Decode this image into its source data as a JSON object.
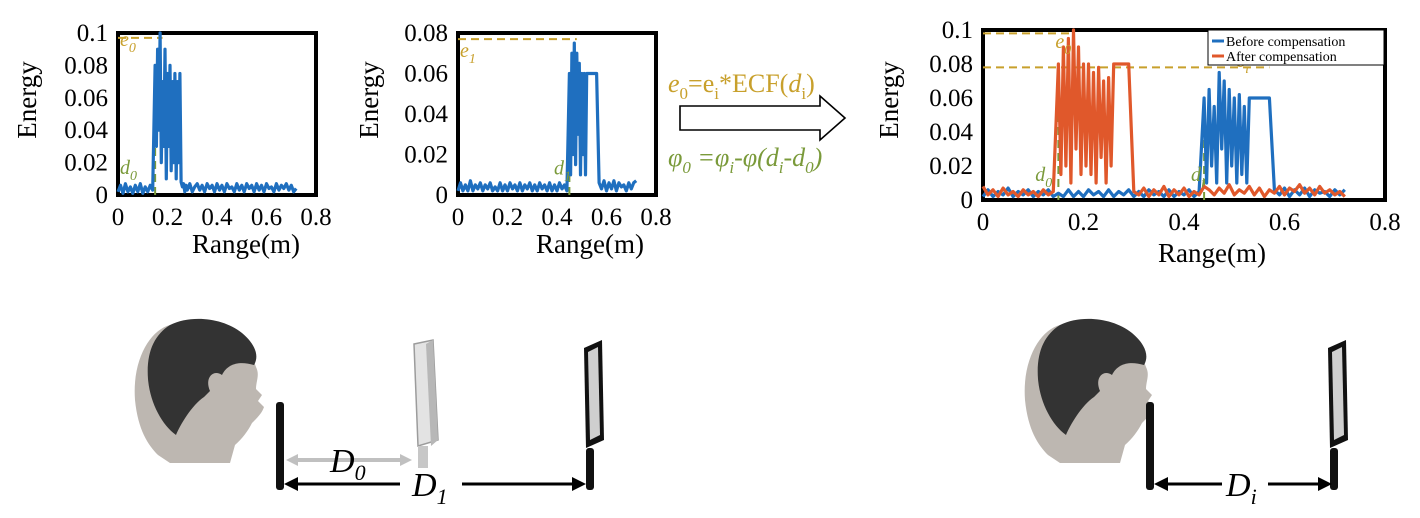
{
  "colors": {
    "before": "#1f6fbf",
    "after": "#e0582b",
    "gold": "#c8a02c",
    "green": "#7a9a3a",
    "axis": "#000000",
    "skin": "#bdb7b1",
    "hair": "#333333"
  },
  "formula": {
    "energy": [
      "e",
      "0",
      "=e",
      "i",
      "*ECF(",
      "d",
      "i",
      ")"
    ],
    "phase": [
      "φ",
      "0",
      " =φ",
      "i",
      "-φ(",
      "d",
      "i",
      "-",
      "d",
      "0",
      ")"
    ]
  },
  "distances": {
    "d0_base": "D",
    "d0_sub": "0",
    "d1_base": "D",
    "d1_sub": "1",
    "di_base": "D",
    "di_sub": "i"
  },
  "chart_data": [
    {
      "type": "line",
      "title": "",
      "xlabel": "Range(m)",
      "ylabel": "Energy",
      "xlim": [
        0,
        0.8
      ],
      "ylim": [
        0,
        0.1
      ],
      "xticks": [
        "0",
        "0.2",
        "0.4",
        "0.6",
        "0.8"
      ],
      "yticks": [
        "0",
        "0.02",
        "0.04",
        "0.06",
        "0.08",
        "0.1"
      ],
      "annotations": [
        {
          "text": "e",
          "sub": "0",
          "color": "gold",
          "x": 0.0,
          "y": 0.097
        },
        {
          "text": "d",
          "sub": "0",
          "color": "green",
          "x": 0.0,
          "y": 0.018
        }
      ],
      "guides": [
        {
          "kind": "h",
          "y": 0.097,
          "x0": 0.0,
          "x1": 0.18,
          "color": "gold"
        },
        {
          "kind": "v",
          "x": 0.15,
          "y0": 0.0,
          "y1": 0.08,
          "color": "green"
        }
      ],
      "series": [
        {
          "color": "before",
          "x": [
            0.0,
            0.01,
            0.02,
            0.03,
            0.04,
            0.05,
            0.06,
            0.07,
            0.08,
            0.09,
            0.1,
            0.11,
            0.12,
            0.13,
            0.14,
            0.15,
            0.155,
            0.16,
            0.165,
            0.17,
            0.175,
            0.18,
            0.185,
            0.19,
            0.195,
            0.2,
            0.205,
            0.21,
            0.215,
            0.22,
            0.225,
            0.23,
            0.235,
            0.24,
            0.245,
            0.25,
            0.255,
            0.26,
            0.265,
            0.27,
            0.275,
            0.28,
            0.29,
            0.3,
            0.31,
            0.32,
            0.33,
            0.34,
            0.35,
            0.36,
            0.37,
            0.38,
            0.39,
            0.4,
            0.41,
            0.42,
            0.43,
            0.44,
            0.45,
            0.46,
            0.47,
            0.48,
            0.49,
            0.5,
            0.51,
            0.52,
            0.53,
            0.54,
            0.55,
            0.56,
            0.57,
            0.58,
            0.59,
            0.6,
            0.61,
            0.62,
            0.63,
            0.64,
            0.65,
            0.66,
            0.67,
            0.68,
            0.69,
            0.7,
            0.71,
            0.72
          ],
          "y": [
            0.002,
            0.006,
            0.001,
            0.007,
            0.002,
            0.005,
            0.001,
            0.006,
            0.002,
            0.007,
            0.001,
            0.005,
            0.002,
            0.006,
            0.003,
            0.08,
            0.03,
            0.09,
            0.04,
            0.1,
            0.02,
            0.07,
            0.03,
            0.09,
            0.01,
            0.075,
            0.03,
            0.08,
            0.015,
            0.07,
            0.02,
            0.075,
            0.01,
            0.07,
            0.02,
            0.075,
            0.008,
            0.005,
            0.007,
            0.002,
            0.006,
            0.003,
            0.007,
            0.002,
            0.005,
            0.007,
            0.003,
            0.006,
            0.002,
            0.007,
            0.004,
            0.006,
            0.002,
            0.007,
            0.003,
            0.006,
            0.002,
            0.007,
            0.004,
            0.005,
            0.002,
            0.007,
            0.003,
            0.006,
            0.002,
            0.007,
            0.004,
            0.006,
            0.002,
            0.007,
            0.003,
            0.006,
            0.002,
            0.007,
            0.004,
            0.005,
            0.002,
            0.007,
            0.003,
            0.006,
            0.004,
            0.007,
            0.003,
            0.006,
            0.002,
            0.004
          ]
        }
      ]
    },
    {
      "type": "line",
      "title": "",
      "xlabel": "Range(m)",
      "ylabel": "Energy",
      "xlim": [
        0,
        0.8
      ],
      "ylim": [
        0,
        0.08
      ],
      "xticks": [
        "0",
        "0.2",
        "0.4",
        "0.6",
        "0.8"
      ],
      "yticks": [
        "0",
        "0.02",
        "0.04",
        "0.06",
        "0.08"
      ],
      "annotations": [
        {
          "text": "e",
          "sub": "1",
          "color": "gold",
          "x": 0.0,
          "y": 0.072
        },
        {
          "text": "d",
          "sub": "1",
          "color": "green",
          "x": 0.38,
          "y": 0.014
        }
      ],
      "guides": [
        {
          "kind": "h",
          "y": 0.077,
          "x0": 0.0,
          "x1": 0.48,
          "color": "gold"
        },
        {
          "kind": "v",
          "x": 0.45,
          "y0": 0.0,
          "y1": 0.06,
          "color": "green"
        }
      ],
      "series": [
        {
          "color": "before",
          "x": [
            0.0,
            0.01,
            0.02,
            0.03,
            0.04,
            0.05,
            0.06,
            0.07,
            0.08,
            0.09,
            0.1,
            0.11,
            0.12,
            0.13,
            0.14,
            0.15,
            0.16,
            0.17,
            0.18,
            0.19,
            0.2,
            0.21,
            0.22,
            0.23,
            0.24,
            0.25,
            0.26,
            0.27,
            0.28,
            0.29,
            0.3,
            0.31,
            0.32,
            0.33,
            0.34,
            0.35,
            0.36,
            0.37,
            0.38,
            0.39,
            0.4,
            0.41,
            0.42,
            0.43,
            0.44,
            0.45,
            0.455,
            0.46,
            0.465,
            0.47,
            0.475,
            0.48,
            0.485,
            0.49,
            0.495,
            0.5,
            0.505,
            0.51,
            0.515,
            0.52,
            0.53,
            0.54,
            0.55,
            0.56,
            0.57,
            0.58,
            0.59,
            0.6,
            0.61,
            0.62,
            0.63,
            0.64,
            0.65,
            0.66,
            0.67,
            0.68,
            0.69,
            0.7,
            0.71,
            0.72
          ],
          "y": [
            0.002,
            0.006,
            0.002,
            0.005,
            0.002,
            0.007,
            0.002,
            0.005,
            0.003,
            0.006,
            0.002,
            0.005,
            0.003,
            0.006,
            0.002,
            0.004,
            0.002,
            0.006,
            0.002,
            0.005,
            0.002,
            0.006,
            0.003,
            0.005,
            0.002,
            0.006,
            0.002,
            0.005,
            0.003,
            0.006,
            0.002,
            0.005,
            0.002,
            0.006,
            0.003,
            0.005,
            0.002,
            0.006,
            0.002,
            0.005,
            0.002,
            0.006,
            0.003,
            0.005,
            0.002,
            0.06,
            0.01,
            0.07,
            0.02,
            0.075,
            0.015,
            0.07,
            0.03,
            0.065,
            0.01,
            0.06,
            0.02,
            0.06,
            0.01,
            0.06,
            0.06,
            0.06,
            0.06,
            0.06,
            0.006,
            0.003,
            0.007,
            0.002,
            0.006,
            0.003,
            0.007,
            0.002,
            0.006,
            0.004,
            0.005,
            0.002,
            0.006,
            0.003,
            0.006,
            0.007
          ]
        }
      ]
    },
    {
      "type": "line",
      "title": "",
      "xlabel": "Range(m)",
      "ylabel": "Energy",
      "xlim": [
        0,
        0.8
      ],
      "ylim": [
        0,
        0.1
      ],
      "xticks": [
        "0",
        "0.2",
        "0.4",
        "0.6",
        "0.8"
      ],
      "yticks": [
        "0",
        "0.02",
        "0.04",
        "0.06",
        "0.08",
        "0.1"
      ],
      "legend": {
        "position": "top-right",
        "entries": [
          "Before compensation",
          "After compensation"
        ]
      },
      "annotations": [
        {
          "text": "e",
          "sub": "0",
          "color": "gold",
          "x": 0.14,
          "y": 0.094
        },
        {
          "text": "e",
          "sub": "i",
          "color": "gold",
          "x": 0.5,
          "y": 0.083
        },
        {
          "text": "d",
          "sub": "0",
          "color": "green",
          "x": 0.1,
          "y": 0.016
        },
        {
          "text": "d",
          "sub": "i",
          "color": "green",
          "x": 0.41,
          "y": 0.016
        }
      ],
      "guides": [
        {
          "kind": "h",
          "y": 0.098,
          "x0": 0.0,
          "x1": 0.18,
          "color": "gold"
        },
        {
          "kind": "h",
          "y": 0.078,
          "x0": 0.0,
          "x1": 0.57,
          "color": "gold"
        },
        {
          "kind": "v",
          "x": 0.15,
          "y0": 0.0,
          "y1": 0.08,
          "color": "green"
        },
        {
          "kind": "v",
          "x": 0.44,
          "y0": 0.0,
          "y1": 0.06,
          "color": "green"
        }
      ],
      "series": [
        {
          "name": "Before compensation",
          "color": "before",
          "x": [
            0.0,
            0.01,
            0.02,
            0.03,
            0.04,
            0.05,
            0.06,
            0.07,
            0.08,
            0.09,
            0.1,
            0.11,
            0.12,
            0.13,
            0.14,
            0.15,
            0.16,
            0.17,
            0.18,
            0.19,
            0.2,
            0.21,
            0.22,
            0.23,
            0.24,
            0.25,
            0.26,
            0.27,
            0.28,
            0.29,
            0.3,
            0.31,
            0.32,
            0.33,
            0.34,
            0.35,
            0.36,
            0.37,
            0.38,
            0.39,
            0.4,
            0.41,
            0.42,
            0.43,
            0.44,
            0.445,
            0.45,
            0.455,
            0.46,
            0.465,
            0.47,
            0.475,
            0.48,
            0.485,
            0.49,
            0.495,
            0.5,
            0.505,
            0.51,
            0.515,
            0.52,
            0.525,
            0.53,
            0.54,
            0.55,
            0.56,
            0.57,
            0.58,
            0.59,
            0.6,
            0.61,
            0.62,
            0.63,
            0.64,
            0.65,
            0.66,
            0.67,
            0.68,
            0.69,
            0.7,
            0.71,
            0.72
          ],
          "y": [
            0.002,
            0.006,
            0.002,
            0.005,
            0.003,
            0.007,
            0.002,
            0.005,
            0.003,
            0.006,
            0.002,
            0.005,
            0.003,
            0.006,
            0.002,
            0.004,
            0.002,
            0.006,
            0.002,
            0.005,
            0.002,
            0.006,
            0.003,
            0.005,
            0.002,
            0.006,
            0.002,
            0.005,
            0.003,
            0.006,
            0.002,
            0.005,
            0.002,
            0.006,
            0.003,
            0.005,
            0.002,
            0.006,
            0.002,
            0.005,
            0.003,
            0.006,
            0.002,
            0.005,
            0.06,
            0.01,
            0.065,
            0.02,
            0.055,
            0.01,
            0.075,
            0.03,
            0.07,
            0.01,
            0.065,
            0.02,
            0.06,
            0.01,
            0.062,
            0.015,
            0.055,
            0.01,
            0.06,
            0.06,
            0.06,
            0.06,
            0.06,
            0.006,
            0.003,
            0.007,
            0.002,
            0.006,
            0.003,
            0.007,
            0.002,
            0.006,
            0.004,
            0.005,
            0.002,
            0.006,
            0.003,
            0.006
          ]
        },
        {
          "name": "After compensation",
          "color": "after",
          "x": [
            0.0,
            0.01,
            0.02,
            0.03,
            0.04,
            0.05,
            0.06,
            0.07,
            0.08,
            0.09,
            0.1,
            0.11,
            0.12,
            0.13,
            0.14,
            0.15,
            0.155,
            0.16,
            0.165,
            0.17,
            0.175,
            0.18,
            0.185,
            0.19,
            0.195,
            0.2,
            0.205,
            0.21,
            0.215,
            0.22,
            0.225,
            0.23,
            0.235,
            0.24,
            0.245,
            0.25,
            0.255,
            0.26,
            0.27,
            0.28,
            0.29,
            0.3,
            0.31,
            0.32,
            0.33,
            0.34,
            0.35,
            0.36,
            0.37,
            0.38,
            0.39,
            0.4,
            0.41,
            0.42,
            0.43,
            0.44,
            0.45,
            0.46,
            0.47,
            0.48,
            0.49,
            0.5,
            0.51,
            0.52,
            0.53,
            0.54,
            0.55,
            0.56,
            0.57,
            0.58,
            0.59,
            0.6,
            0.61,
            0.62,
            0.63,
            0.64,
            0.65,
            0.66,
            0.67,
            0.68,
            0.69,
            0.7,
            0.71,
            0.72
          ],
          "y": [
            0.008,
            0.003,
            0.006,
            0.002,
            0.007,
            0.003,
            0.005,
            0.002,
            0.006,
            0.003,
            0.005,
            0.002,
            0.006,
            0.003,
            0.005,
            0.08,
            0.015,
            0.09,
            0.02,
            0.095,
            0.01,
            0.1,
            0.03,
            0.09,
            0.015,
            0.08,
            0.02,
            0.08,
            0.015,
            0.075,
            0.01,
            0.078,
            0.025,
            0.07,
            0.01,
            0.072,
            0.02,
            0.08,
            0.08,
            0.08,
            0.08,
            0.005,
            0.003,
            0.007,
            0.002,
            0.006,
            0.003,
            0.008,
            0.002,
            0.006,
            0.003,
            0.007,
            0.002,
            0.005,
            0.003,
            0.008,
            0.006,
            0.003,
            0.007,
            0.004,
            0.009,
            0.003,
            0.006,
            0.004,
            0.008,
            0.003,
            0.007,
            0.002,
            0.006,
            0.004,
            0.008,
            0.003,
            0.007,
            0.005,
            0.009,
            0.004,
            0.007,
            0.003,
            0.008,
            0.004,
            0.006,
            0.003,
            0.005,
            0.002
          ]
        }
      ]
    }
  ]
}
